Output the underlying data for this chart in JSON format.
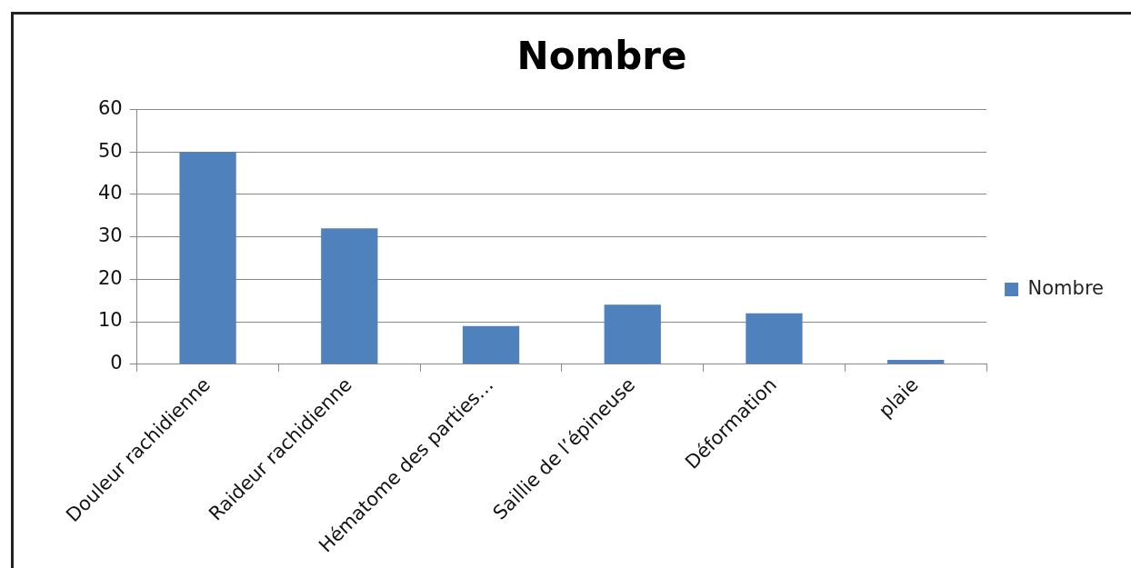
{
  "chart_data": {
    "type": "bar",
    "title": "Nombre",
    "categories": [
      "Douleur rachidienne",
      "Raideur rachidienne",
      "Hématome des parties…",
      "Saillie de l’épineuse",
      "Déformation",
      "plaie"
    ],
    "series": [
      {
        "name": "Nombre",
        "color": "#4f81bd",
        "values": [
          50,
          32,
          9,
          14,
          12,
          1
        ]
      }
    ],
    "ylim": [
      0,
      60
    ],
    "yticks": [
      0,
      10,
      20,
      30,
      40,
      50,
      60
    ],
    "grid": "y",
    "legend": "right"
  }
}
